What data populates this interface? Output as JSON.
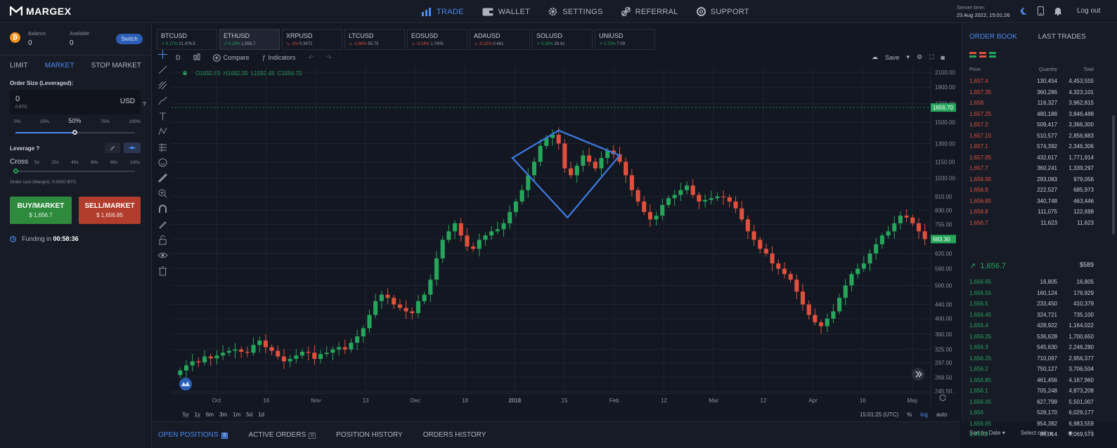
{
  "app": {
    "logo": "MARGEX"
  },
  "nav": {
    "trade": "TRADE",
    "wallet": "WALLET",
    "settings": "SETTINGS",
    "referral": "REFERRAL",
    "support": "SUPPORT"
  },
  "server": {
    "label": "Server time:",
    "value": "23 Aug 2022, 15:01:26"
  },
  "logout": "Log out",
  "balance": {
    "balance_label": "Balance",
    "balance_value": "0",
    "available_label": "Available",
    "available_value": "0",
    "switch_label": "Switch"
  },
  "order_tabs": [
    "LIMIT",
    "MARKET",
    "STOP MARKET"
  ],
  "order": {
    "size_label": "Order Size (Leveraged):",
    "size_value": "0",
    "size_sub": "0 BTC",
    "currency": "USD",
    "help": "?",
    "percents": [
      "0%",
      "25%",
      "50%",
      "75%",
      "100%"
    ],
    "percent_selected": 50
  },
  "leverage": {
    "label": "Leverage",
    "help": "?",
    "cross": "Cross",
    "steps": [
      "5x",
      "20x",
      "40x",
      "60x",
      "80x",
      "100x"
    ],
    "cost": "Order cost (Margin): 0.0000 BTC"
  },
  "buy": {
    "label": "BUY/MARKET",
    "price": "$ 1,656.7"
  },
  "sell": {
    "label": "SELL/MARKET",
    "price": "$ 1,656.85"
  },
  "funding": {
    "label": "Funding in",
    "value": "00:58:36"
  },
  "tickers": [
    {
      "sym": "BTCUSD",
      "chg": "0.17%",
      "price": "21,478.5",
      "dir": "up"
    },
    {
      "sym": "ETHUSD",
      "chg": "0.23%",
      "price": "1,656.7",
      "dir": "up"
    },
    {
      "sym": "XRPUSD",
      "chg": "-1%",
      "price": "0.3472",
      "dir": "dn"
    },
    {
      "sym": "LTCUSD",
      "chg": "-1.66%",
      "price": "55.75",
      "dir": "dn"
    },
    {
      "sym": "EOSUSD",
      "chg": "-3.14%",
      "price": "1.7405",
      "dir": "dn"
    },
    {
      "sym": "ADAUSD",
      "chg": "-0.22%",
      "price": "0.461",
      "dir": "dn"
    },
    {
      "sym": "SOLUSD",
      "chg": "0.33%",
      "price": "39.41",
      "dir": "up"
    },
    {
      "sym": "UNIUSD",
      "chg": "1.72%",
      "price": "7.09",
      "dir": "up"
    }
  ],
  "chart_toolbar": {
    "interval": "D",
    "compare": "Compare",
    "indicators": "Indicators",
    "save": "Save"
  },
  "ohlc": {
    "o": "O1652.85",
    "h": "H1682.35",
    "l": "L1592.45",
    "c": "C1656.70"
  },
  "chart_data": {
    "type": "candlestick",
    "y_scale": "log",
    "y_ticks": [
      "2100.00",
      "1900.00",
      "1700.00",
      "1500.00",
      "1300.00",
      "1150.00",
      "1030.00",
      "910.00",
      "830.00",
      "755.00",
      "685.00",
      "620.00",
      "560.00",
      "500.00",
      "440.00",
      "400.00",
      "360.00",
      "325.00",
      "297.00",
      "269.50",
      "245.50"
    ],
    "x_ticks": [
      "Oct",
      "16",
      "Nov",
      "13",
      "Dec",
      "18",
      "2018",
      "15",
      "Feb",
      "12",
      "Mar",
      "12",
      "Apr",
      "16",
      "May"
    ],
    "price_badges": [
      "1656.70",
      "683.30"
    ],
    "closes": [
      282,
      292,
      300,
      298,
      310,
      306,
      312,
      318,
      322,
      325,
      320,
      318,
      335,
      345,
      330,
      322,
      310,
      300,
      305,
      312,
      320,
      318,
      305,
      315,
      318,
      325,
      330,
      325,
      340,
      355,
      375,
      410,
      450,
      470,
      460,
      440,
      430,
      420,
      415,
      450,
      470,
      520,
      600,
      680,
      720,
      760,
      700,
      650,
      640,
      680,
      700,
      720,
      730,
      760,
      820,
      880,
      950,
      1050,
      1150,
      1280,
      1350,
      1380,
      1300,
      1100,
      1050,
      1120,
      1200,
      1150,
      1100,
      1180,
      1240,
      1210,
      1150,
      1050,
      950,
      880,
      820,
      780,
      800,
      860,
      900,
      920,
      950,
      980,
      920,
      880,
      890,
      900,
      910,
      905,
      880,
      840,
      780,
      720,
      680,
      640,
      620,
      580,
      560,
      540,
      520,
      480,
      440,
      410,
      390,
      380,
      400,
      420,
      460,
      500,
      540,
      560,
      580,
      620,
      660,
      700,
      720,
      760,
      800,
      790,
      760,
      720,
      683
    ]
  },
  "timeframes": [
    "5y",
    "1y",
    "6m",
    "3m",
    "1m",
    "5d",
    "1d"
  ],
  "chart_footer": {
    "time": "15:01:25 (UTC)",
    "pct": "%",
    "log": "log",
    "auto": "auto"
  },
  "bottom_tabs": {
    "open": "OPEN POSITIONS",
    "open_count": "0",
    "active": "ACTIVE ORDERS",
    "active_count": "0",
    "history": "POSITION HISTORY",
    "orders": "ORDERS HISTORY"
  },
  "sort": {
    "by": "Sort by Date",
    "coin": "Select coin"
  },
  "orderbook": {
    "tab_book": "ORDER BOOK",
    "tab_trades": "LAST TRADES",
    "headers": [
      "Price",
      "Quantity",
      "Total"
    ],
    "asks": [
      [
        "1,657.4",
        "130,454",
        "4,453,555"
      ],
      [
        "1,657.35",
        "360,286",
        "4,323,101"
      ],
      [
        "1,658",
        "116,327",
        "3,962,815"
      ],
      [
        "1,657.25",
        "480,188",
        "3,846,488"
      ],
      [
        "1,657.2",
        "509,417",
        "3,366,300"
      ],
      [
        "1,657.15",
        "510,577",
        "2,856,883"
      ],
      [
        "1,657.1",
        "574,392",
        "2,346,306"
      ],
      [
        "1,657.05",
        "432,617",
        "1,771,914"
      ],
      [
        "1,657.7",
        "360,241",
        "1,339,297"
      ],
      [
        "1,656.95",
        "293,083",
        "979,056"
      ],
      [
        "1,656.9",
        "222,527",
        "685,973"
      ],
      [
        "1,656.85",
        "340,748",
        "463,446"
      ],
      [
        "1,656.8",
        "111,075",
        "122,698"
      ],
      [
        "1,656.7",
        "11,623",
        "11,623"
      ]
    ],
    "mid_price": "1,656.7",
    "mid_value": "$589",
    "bids": [
      [
        "1,656.65",
        "16,805",
        "16,805"
      ],
      [
        "1,656.55",
        "160,124",
        "176,929"
      ],
      [
        "1,656.5",
        "233,450",
        "410,379"
      ],
      [
        "1,656.45",
        "324,721",
        "735,100"
      ],
      [
        "1,656.4",
        "428,922",
        "1,164,022"
      ],
      [
        "1,656.35",
        "536,628",
        "1,700,650"
      ],
      [
        "1,656.3",
        "545,630",
        "2,246,280"
      ],
      [
        "1,656.25",
        "710,097",
        "2,956,377"
      ],
      [
        "1,656.2",
        "750,127",
        "3,706,504"
      ],
      [
        "1,656.85",
        "461,456",
        "4,167,960"
      ],
      [
        "1,656.1",
        "705,248",
        "4,873,208"
      ],
      [
        "1,656.05",
        "627,799",
        "5,501,007"
      ],
      [
        "1,656",
        "528,170",
        "6,029,177"
      ],
      [
        "1,656.65",
        "954,382",
        "6,983,559"
      ],
      [
        "1,655.9",
        "86,014",
        "7,069,573"
      ]
    ]
  }
}
